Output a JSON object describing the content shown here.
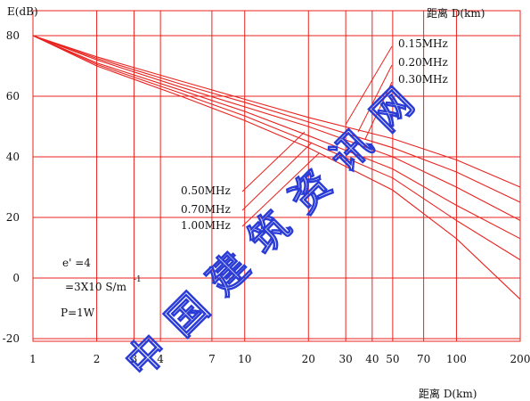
{
  "chart_data": {
    "type": "line",
    "title": "",
    "ylabel": "E(dB)",
    "xlabel": "距离  D(km)",
    "xlabel_top": "距离  D(km)",
    "xscale": "log",
    "xlim": [
      1,
      200
    ],
    "ylim": [
      -20,
      82
    ],
    "x_ticks": [
      1,
      2,
      3,
      4,
      7,
      10,
      20,
      30,
      40,
      50,
      70,
      100,
      200
    ],
    "x_tick_labels": [
      "1",
      "2",
      "3",
      "4",
      "7",
      "10",
      "20",
      "30",
      "40",
      "50",
      "70",
      "100",
      "200"
    ],
    "y_ticks": [
      -20,
      0,
      20,
      40,
      60,
      80
    ],
    "y_tick_labels": [
      "-20",
      "0",
      "20",
      "40",
      "60",
      "80"
    ],
    "grid": true,
    "grid_color": "#e8231f",
    "line_color": "#e8231f",
    "series": [
      {
        "name": "0.15MHz",
        "x": [
          1,
          2,
          5,
          10,
          20,
          50,
          100,
          200
        ],
        "y": [
          80,
          73,
          65,
          59,
          53,
          46,
          39,
          30
        ]
      },
      {
        "name": "0.20MHz",
        "x": [
          1,
          2,
          5,
          10,
          20,
          50,
          100,
          200
        ],
        "y": [
          80,
          72.5,
          64,
          58,
          51.5,
          43,
          35,
          25
        ]
      },
      {
        "name": "0.30MHz",
        "x": [
          1,
          2,
          5,
          10,
          20,
          50,
          100,
          200
        ],
        "y": [
          80,
          72,
          63,
          56.5,
          50,
          40,
          30,
          19
        ]
      },
      {
        "name": "0.50MHz",
        "x": [
          1,
          2,
          5,
          10,
          20,
          50,
          100,
          200
        ],
        "y": [
          80,
          71,
          62,
          55,
          47,
          36,
          24,
          13
        ]
      },
      {
        "name": "0.70MHz",
        "x": [
          1,
          2,
          5,
          10,
          20,
          50,
          100,
          200
        ],
        "y": [
          80,
          70.5,
          61,
          53.5,
          45,
          33,
          19,
          6
        ]
      },
      {
        "name": "1.00MHz",
        "x": [
          1,
          2,
          5,
          10,
          20,
          50,
          100,
          200
        ],
        "y": [
          80,
          70,
          60,
          52,
          43,
          29,
          13,
          -7
        ]
      }
    ],
    "annotations": {
      "params": [
        "e' =4",
        "=3X10 S/m",
        "P=1W"
      ],
      "exponent": "-1",
      "freq_labels_top": [
        "0.15MHz",
        "0.20MHz",
        "0.30MHz"
      ],
      "freq_labels_left": [
        "0.50MHz",
        "0.70MHz",
        "1.00MHz"
      ]
    },
    "watermark": "中国建筑资讯网"
  }
}
